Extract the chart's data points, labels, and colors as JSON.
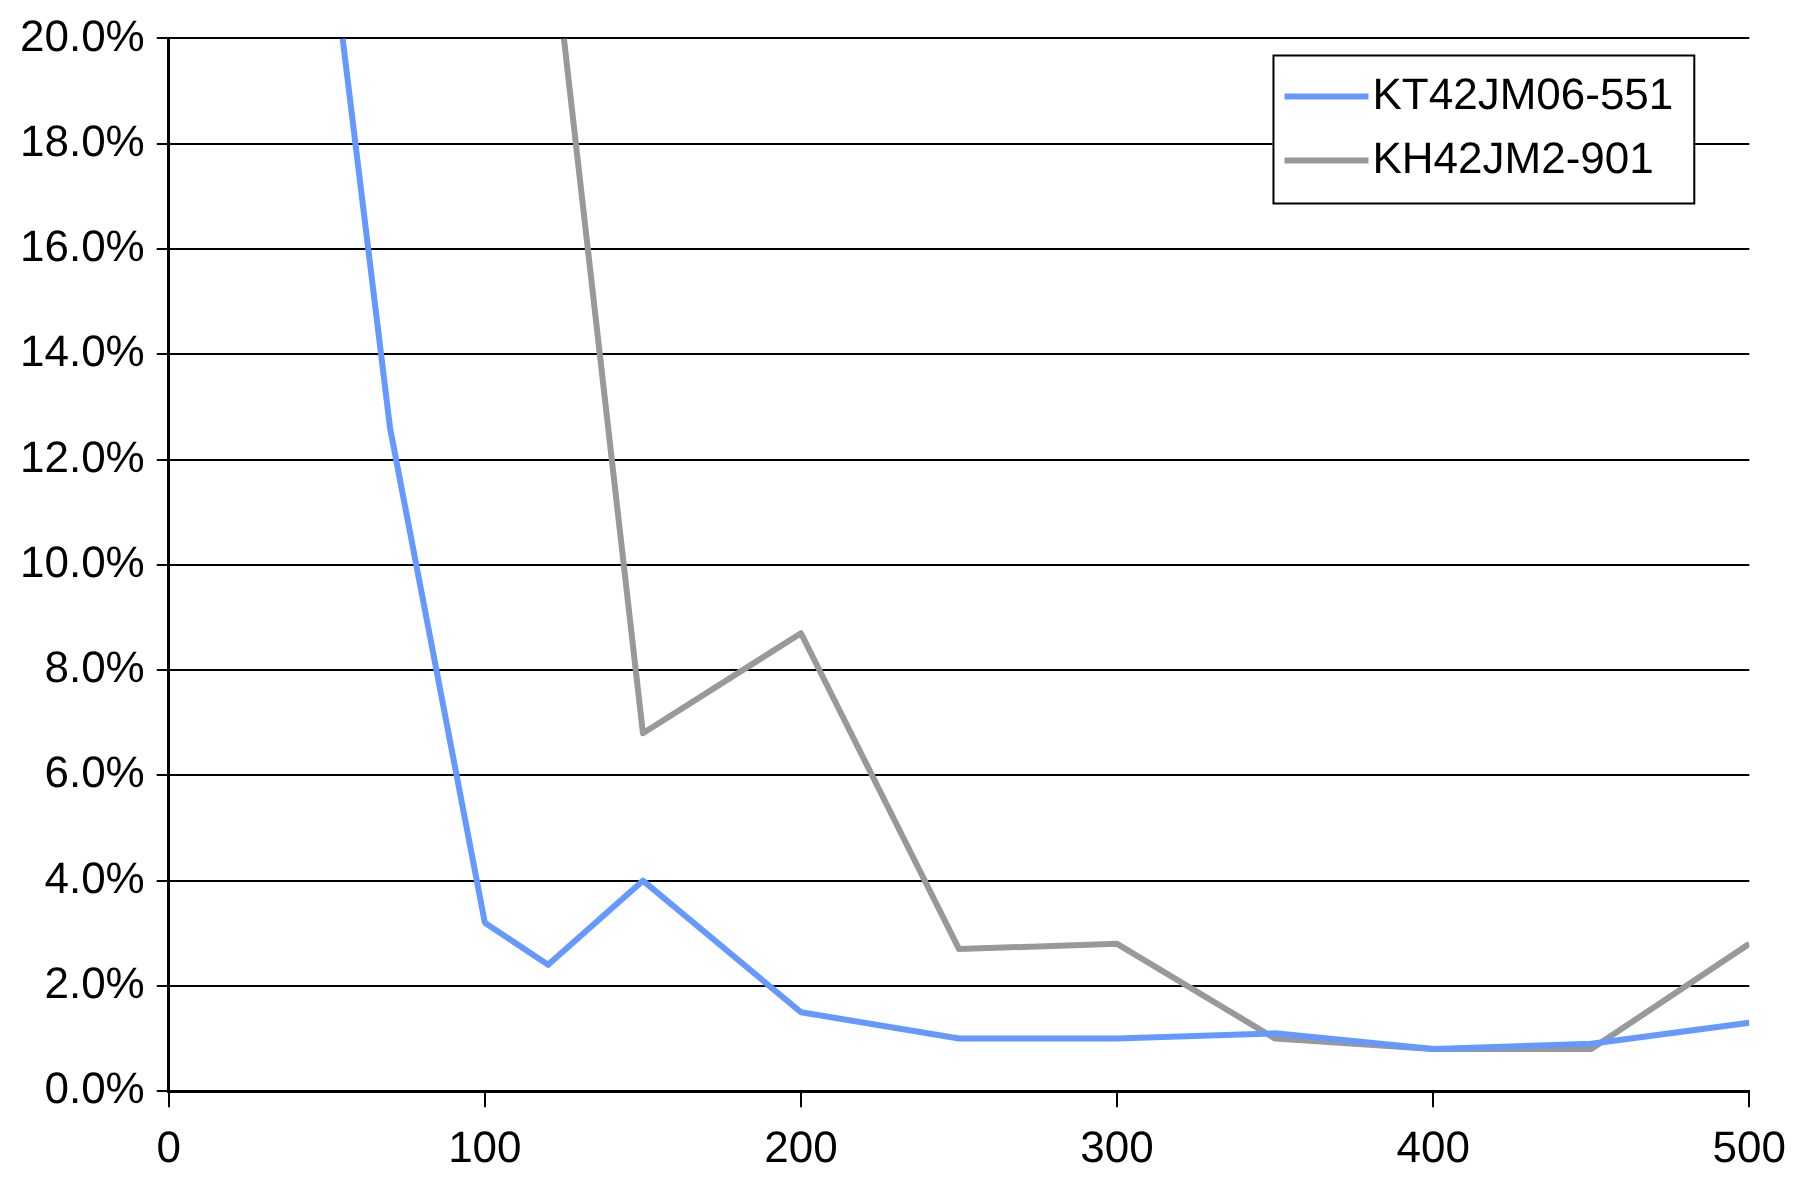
{
  "chart_data": {
    "type": "line",
    "series": [
      {
        "name": "KT42JM06-551",
        "color": "#6699ff",
        "x": [
          55,
          70,
          100,
          120,
          150,
          200,
          250,
          300,
          350,
          400,
          450,
          500
        ],
        "values": [
          20,
          12.6,
          3.2,
          2.4,
          4.0,
          1.5,
          1.0,
          1.0,
          1.1,
          0.8,
          0.9,
          1.3
        ]
      },
      {
        "name": "KH42JM2-901",
        "color": "#999999",
        "x": [
          125,
          150,
          200,
          250,
          300,
          350,
          400,
          450,
          500
        ],
        "values": [
          20,
          6.8,
          8.7,
          2.7,
          2.8,
          1.0,
          0.8,
          0.8,
          2.8
        ]
      }
    ],
    "xlim": [
      0,
      500
    ],
    "xticks": [
      0,
      100,
      200,
      300,
      400,
      500
    ],
    "ylim": [
      0,
      20
    ],
    "yticks": [
      {
        "value": 0,
        "label": "0.0%"
      },
      {
        "value": 2,
        "label": "2.0%"
      },
      {
        "value": 4,
        "label": "4.0%"
      },
      {
        "value": 6,
        "label": "6.0%"
      },
      {
        "value": 8,
        "label": "8.0%"
      },
      {
        "value": 10,
        "label": "10.0%"
      },
      {
        "value": 12,
        "label": "12.0%"
      },
      {
        "value": 14,
        "label": "14.0%"
      },
      {
        "value": 16,
        "label": "16.0%"
      },
      {
        "value": 18,
        "label": "18.0%"
      },
      {
        "value": 20,
        "label": "20.0%"
      }
    ],
    "grid": "y",
    "legend": "top right",
    "marker": "none",
    "line_style": "solid"
  }
}
